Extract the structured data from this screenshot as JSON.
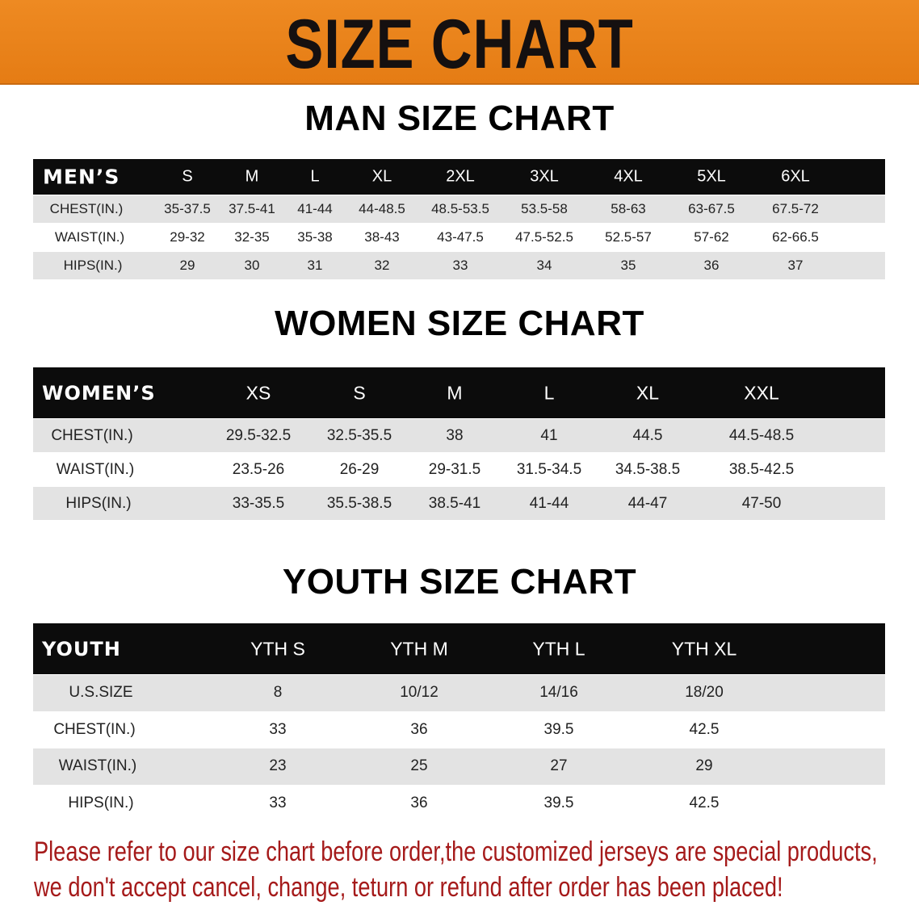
{
  "banner": {
    "title": "SIZE CHART",
    "color": "#e98318"
  },
  "sections": [
    {
      "title": "MAN SIZE CHART",
      "header_label": "MEN’S",
      "sizes": [
        "S",
        "M",
        "L",
        "XL",
        "2XL",
        "3XL",
        "4XL",
        "5XL",
        "6XL"
      ],
      "rows": [
        {
          "label": "CHEST(IN.)",
          "values": [
            "35-37.5",
            "37.5-41",
            "41-44",
            "44-48.5",
            "48.5-53.5",
            "53.5-58",
            "58-63",
            "63-67.5",
            "67.5-72"
          ]
        },
        {
          "label": "WAIST(IN.)",
          "values": [
            "29-32",
            "32-35",
            "35-38",
            "38-43",
            "43-47.5",
            "47.5-52.5",
            "52.5-57",
            "57-62",
            "62-66.5"
          ]
        },
        {
          "label": "HIPS(IN.)",
          "values": [
            "29",
            "30",
            "31",
            "32",
            "33",
            "34",
            "35",
            "36",
            "37"
          ]
        }
      ]
    },
    {
      "title": "WOMEN SIZE CHART",
      "header_label": "WOMEN’S",
      "sizes": [
        "XS",
        "S",
        "M",
        "L",
        "XL",
        "XXL"
      ],
      "rows": [
        {
          "label": "CHEST(IN.)",
          "values": [
            "29.5-32.5",
            "32.5-35.5",
            "38",
            "41",
            "44.5",
            "44.5-48.5"
          ]
        },
        {
          "label": "WAIST(IN.)",
          "values": [
            "23.5-26",
            "26-29",
            "29-31.5",
            "31.5-34.5",
            "34.5-38.5",
            "38.5-42.5"
          ]
        },
        {
          "label": "HIPS(IN.)",
          "values": [
            "33-35.5",
            "35.5-38.5",
            "38.5-41",
            "41-44",
            "44-47",
            "47-50"
          ]
        }
      ]
    },
    {
      "title": "YOUTH SIZE CHART",
      "header_label": "YOUTH",
      "sizes": [
        "YTH S",
        "YTH M",
        "YTH L",
        "YTH XL"
      ],
      "rows": [
        {
          "label": "U.S.SIZE",
          "values": [
            "8",
            "10/12",
            "14/16",
            "18/20"
          ]
        },
        {
          "label": "CHEST(IN.)",
          "values": [
            "33",
            "36",
            "39.5",
            "42.5"
          ]
        },
        {
          "label": "WAIST(IN.)",
          "values": [
            "23",
            "25",
            "27",
            "29"
          ]
        },
        {
          "label": "HIPS(IN.)",
          "values": [
            "33",
            "36",
            "39.5",
            "42.5"
          ]
        }
      ]
    }
  ],
  "footer": {
    "line1": "Please refer to our size chart before order,the customized jerseys are special products,",
    "line2": "we don't accept cancel, change, teturn or refund after order has been placed!",
    "color": "#a51a1a"
  }
}
